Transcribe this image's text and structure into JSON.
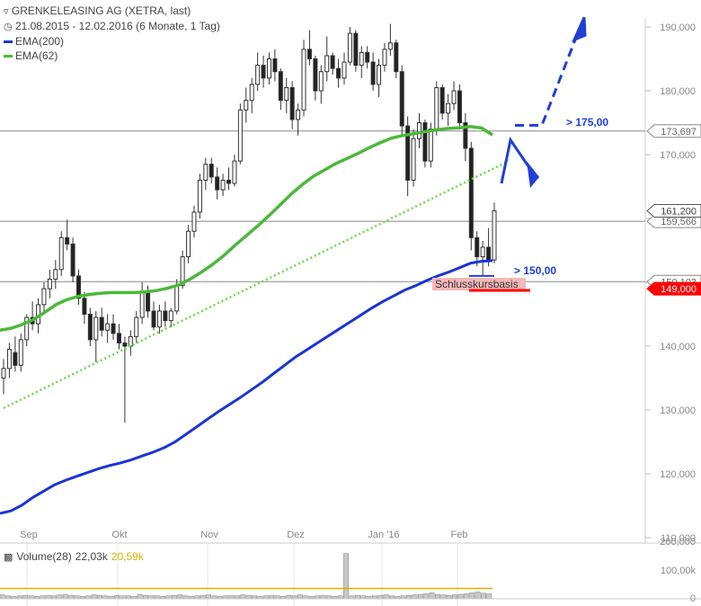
{
  "header": {
    "title": "GRENKELEASING AG (XETRA, last)",
    "period": "21.08.2015 - 12.02.2016 (6 Monate, 1 Tag)",
    "legend": [
      {
        "name": "EMA(200)",
        "color": "#1a34d6"
      },
      {
        "name": "EMA(62)",
        "color": "#4cb83a"
      }
    ]
  },
  "volume_panel": {
    "label": "Volume(28)",
    "value1": "22,03k",
    "value2": "20,59k",
    "value2_color": "#e0b000",
    "y_ticks": [
      "200,000",
      "100,00k",
      "0"
    ]
  },
  "annotations": {
    "support_label": "> 150,00",
    "target_label": "> 175,00",
    "basis_label": "Schlusskursbasis"
  },
  "chart_data": {
    "type": "candlestick",
    "x_months": [
      "Sep",
      "Okt",
      "Nov",
      "Dez",
      "Jan '16",
      "Feb"
    ],
    "y_ticks": [
      "190,000",
      "180,000",
      "170,000",
      "160,000",
      "150,000",
      "140,000",
      "130,000",
      "120,000",
      "110,000"
    ],
    "ylim": [
      110000,
      193000
    ],
    "horizontal_lines": [
      {
        "value": 173697,
        "label": "173,697"
      },
      {
        "value": 159566,
        "label": "159,566"
      },
      {
        "value": 150103,
        "label": "150,103"
      }
    ],
    "price_tags": [
      {
        "value": 161200,
        "label": "161,200",
        "color": "#555555"
      },
      {
        "value": 149000,
        "label": "149,000",
        "color": "#ff0000"
      }
    ],
    "ema62": [
      142.5,
      142.8,
      143.4,
      144.2,
      145.3,
      146.5,
      147.3,
      147.8,
      148.1,
      148.3,
      148.4,
      148.4,
      148.4,
      148.5,
      148.7,
      149.1,
      149.6,
      150.5,
      151.6,
      152.8,
      154.2,
      155.8,
      157.3,
      158.8,
      160.4,
      162.1,
      163.8,
      165.3,
      166.6,
      167.6,
      168.6,
      169.4,
      170.2,
      171.1,
      171.9,
      172.6,
      173.0,
      173.3,
      173.6,
      173.9,
      174.1,
      174.2,
      174.4,
      174.2,
      173.1
    ],
    "ema200": [
      113.8,
      114.2,
      115.1,
      116.3,
      117.3,
      118.3,
      119.0,
      119.6,
      120.2,
      120.8,
      121.3,
      121.7,
      122.2,
      122.8,
      123.4,
      124.1,
      125.0,
      126.2,
      127.4,
      128.6,
      129.8,
      130.9,
      132.0,
      133.2,
      134.4,
      135.7,
      137.0,
      138.3,
      139.4,
      140.5,
      141.6,
      142.7,
      143.8,
      144.9,
      146.0,
      147.0,
      147.9,
      148.8,
      149.5,
      150.3,
      151.0,
      151.6,
      152.3,
      153.0,
      153.3,
      153.4
    ],
    "trendline": [
      {
        "x": "21.08.2015",
        "y": 130300
      },
      {
        "x": "12.02.2016",
        "y": 169000
      }
    ],
    "candles": [
      {
        "o": 135.0,
        "h": 138.0,
        "l": 132.5,
        "c": 136.5
      },
      {
        "o": 136.5,
        "h": 140.5,
        "l": 135.0,
        "c": 139.5
      },
      {
        "o": 139.0,
        "h": 141.5,
        "l": 136.0,
        "c": 137.0
      },
      {
        "o": 137.0,
        "h": 142.0,
        "l": 136.0,
        "c": 141.0
      },
      {
        "o": 141.0,
        "h": 145.0,
        "l": 140.0,
        "c": 144.5
      },
      {
        "o": 144.5,
        "h": 147.0,
        "l": 142.5,
        "c": 143.5
      },
      {
        "o": 143.5,
        "h": 147.5,
        "l": 142.0,
        "c": 146.5
      },
      {
        "o": 146.5,
        "h": 150.0,
        "l": 145.5,
        "c": 149.0
      },
      {
        "o": 149.0,
        "h": 152.0,
        "l": 147.5,
        "c": 150.5
      },
      {
        "o": 150.5,
        "h": 153.5,
        "l": 149.0,
        "c": 152.0
      },
      {
        "o": 152.0,
        "h": 158.0,
        "l": 151.0,
        "c": 157.0
      },
      {
        "o": 157.0,
        "h": 159.8,
        "l": 155.0,
        "c": 156.0
      },
      {
        "o": 156.0,
        "h": 157.0,
        "l": 150.0,
        "c": 151.0
      },
      {
        "o": 151.0,
        "h": 152.0,
        "l": 146.5,
        "c": 147.5
      },
      {
        "o": 147.5,
        "h": 148.5,
        "l": 143.5,
        "c": 145.0
      },
      {
        "o": 145.0,
        "h": 146.0,
        "l": 140.0,
        "c": 141.0
      },
      {
        "o": 141.0,
        "h": 145.5,
        "l": 137.5,
        "c": 144.5
      },
      {
        "o": 144.5,
        "h": 146.0,
        "l": 141.5,
        "c": 142.5
      },
      {
        "o": 142.5,
        "h": 145.0,
        "l": 140.5,
        "c": 143.5
      },
      {
        "o": 143.5,
        "h": 145.0,
        "l": 141.0,
        "c": 142.0
      },
      {
        "o": 142.0,
        "h": 143.5,
        "l": 139.5,
        "c": 140.5
      },
      {
        "o": 140.5,
        "h": 141.5,
        "l": 128.0,
        "c": 140.0
      },
      {
        "o": 140.0,
        "h": 142.5,
        "l": 138.5,
        "c": 141.5
      },
      {
        "o": 141.5,
        "h": 145.5,
        "l": 140.5,
        "c": 144.5
      },
      {
        "o": 144.5,
        "h": 150.0,
        "l": 143.5,
        "c": 148.5
      },
      {
        "o": 148.5,
        "h": 149.5,
        "l": 144.5,
        "c": 145.5
      },
      {
        "o": 145.5,
        "h": 147.0,
        "l": 142.5,
        "c": 143.0
      },
      {
        "o": 143.0,
        "h": 146.5,
        "l": 142.0,
        "c": 145.5
      },
      {
        "o": 145.5,
        "h": 147.0,
        "l": 143.0,
        "c": 144.0
      },
      {
        "o": 144.0,
        "h": 146.0,
        "l": 143.0,
        "c": 145.5
      },
      {
        "o": 145.5,
        "h": 150.5,
        "l": 145.0,
        "c": 149.5
      },
      {
        "o": 149.5,
        "h": 155.0,
        "l": 149.0,
        "c": 154.0
      },
      {
        "o": 154.0,
        "h": 159.0,
        "l": 153.0,
        "c": 158.0
      },
      {
        "o": 158.0,
        "h": 162.0,
        "l": 157.0,
        "c": 161.0
      },
      {
        "o": 161.0,
        "h": 167.0,
        "l": 160.0,
        "c": 166.0
      },
      {
        "o": 166.0,
        "h": 169.5,
        "l": 164.5,
        "c": 168.5
      },
      {
        "o": 168.5,
        "h": 169.5,
        "l": 165.5,
        "c": 166.5
      },
      {
        "o": 166.5,
        "h": 168.0,
        "l": 163.0,
        "c": 164.5
      },
      {
        "o": 164.5,
        "h": 167.0,
        "l": 163.5,
        "c": 166.0
      },
      {
        "o": 166.0,
        "h": 168.0,
        "l": 164.5,
        "c": 165.5
      },
      {
        "o": 165.5,
        "h": 170.0,
        "l": 165.0,
        "c": 169.0
      },
      {
        "o": 169.0,
        "h": 178.0,
        "l": 168.5,
        "c": 177.0
      },
      {
        "o": 177.0,
        "h": 180.5,
        "l": 175.0,
        "c": 178.5
      },
      {
        "o": 178.5,
        "h": 182.0,
        "l": 176.5,
        "c": 181.0
      },
      {
        "o": 181.0,
        "h": 186.0,
        "l": 180.0,
        "c": 184.0
      },
      {
        "o": 184.0,
        "h": 185.5,
        "l": 180.5,
        "c": 182.0
      },
      {
        "o": 182.0,
        "h": 186.0,
        "l": 181.0,
        "c": 185.0
      },
      {
        "o": 185.0,
        "h": 186.5,
        "l": 181.5,
        "c": 183.0
      },
      {
        "o": 183.0,
        "h": 183.5,
        "l": 177.0,
        "c": 178.5
      },
      {
        "o": 178.5,
        "h": 182.0,
        "l": 176.5,
        "c": 180.5
      },
      {
        "o": 180.5,
        "h": 181.5,
        "l": 174.0,
        "c": 175.5
      },
      {
        "o": 175.5,
        "h": 178.0,
        "l": 173.0,
        "c": 177.0
      },
      {
        "o": 177.0,
        "h": 188.0,
        "l": 176.0,
        "c": 186.5
      },
      {
        "o": 186.5,
        "h": 189.5,
        "l": 184.0,
        "c": 185.0
      },
      {
        "o": 185.0,
        "h": 185.5,
        "l": 178.5,
        "c": 180.0
      },
      {
        "o": 180.0,
        "h": 184.0,
        "l": 178.0,
        "c": 183.0
      },
      {
        "o": 183.0,
        "h": 188.5,
        "l": 181.5,
        "c": 185.5
      },
      {
        "o": 185.5,
        "h": 186.0,
        "l": 182.5,
        "c": 183.5
      },
      {
        "o": 183.5,
        "h": 185.0,
        "l": 180.5,
        "c": 182.0
      },
      {
        "o": 182.0,
        "h": 186.0,
        "l": 181.0,
        "c": 184.5
      },
      {
        "o": 184.5,
        "h": 190.0,
        "l": 184.0,
        "c": 189.0
      },
      {
        "o": 189.0,
        "h": 189.5,
        "l": 183.0,
        "c": 184.0
      },
      {
        "o": 184.0,
        "h": 187.0,
        "l": 182.0,
        "c": 186.0
      },
      {
        "o": 186.0,
        "h": 187.0,
        "l": 183.5,
        "c": 184.5
      },
      {
        "o": 184.5,
        "h": 186.0,
        "l": 180.0,
        "c": 181.0
      },
      {
        "o": 181.0,
        "h": 185.0,
        "l": 179.0,
        "c": 184.0
      },
      {
        "o": 184.0,
        "h": 187.5,
        "l": 183.0,
        "c": 186.5
      },
      {
        "o": 186.5,
        "h": 190.5,
        "l": 185.5,
        "c": 187.5
      },
      {
        "o": 187.5,
        "h": 188.0,
        "l": 182.0,
        "c": 183.0
      },
      {
        "o": 183.0,
        "h": 184.0,
        "l": 173.0,
        "c": 174.5
      },
      {
        "o": 174.5,
        "h": 176.0,
        "l": 163.5,
        "c": 166.0
      },
      {
        "o": 166.0,
        "h": 174.0,
        "l": 165.0,
        "c": 172.5
      },
      {
        "o": 172.5,
        "h": 176.5,
        "l": 171.0,
        "c": 175.0
      },
      {
        "o": 175.0,
        "h": 175.5,
        "l": 168.0,
        "c": 169.0
      },
      {
        "o": 169.0,
        "h": 175.0,
        "l": 168.0,
        "c": 174.0
      },
      {
        "o": 174.0,
        "h": 181.5,
        "l": 173.0,
        "c": 180.5
      },
      {
        "o": 180.5,
        "h": 181.0,
        "l": 175.5,
        "c": 176.5
      },
      {
        "o": 176.5,
        "h": 179.5,
        "l": 174.5,
        "c": 178.0
      },
      {
        "o": 178.0,
        "h": 181.5,
        "l": 177.0,
        "c": 180.0
      },
      {
        "o": 180.0,
        "h": 181.0,
        "l": 174.0,
        "c": 175.0
      },
      {
        "o": 175.0,
        "h": 176.5,
        "l": 169.0,
        "c": 171.0
      },
      {
        "o": 171.0,
        "h": 172.0,
        "l": 155.0,
        "c": 157.0
      },
      {
        "o": 157.0,
        "h": 158.0,
        "l": 152.5,
        "c": 154.0
      },
      {
        "o": 154.0,
        "h": 156.5,
        "l": 151.0,
        "c": 155.5
      },
      {
        "o": 155.5,
        "h": 158.5,
        "l": 152.5,
        "c": 153.5
      },
      {
        "o": 153.5,
        "h": 162.5,
        "l": 153.0,
        "c": 161.2
      }
    ],
    "volume_series": [
      8,
      6,
      5,
      6,
      7,
      6,
      5,
      6,
      7,
      6,
      8,
      9,
      7,
      6,
      5,
      6,
      8,
      7,
      6,
      5,
      7,
      6,
      6,
      5,
      9,
      7,
      6,
      6,
      5,
      6,
      7,
      8,
      6,
      5,
      6,
      7,
      8,
      6,
      5,
      6,
      7,
      6,
      8,
      7,
      6,
      5,
      6,
      7,
      6,
      5,
      7,
      6,
      8,
      6,
      5,
      6,
      7,
      6,
      5,
      6,
      90,
      6,
      7,
      6,
      5,
      6,
      7,
      8,
      6,
      5,
      6,
      7,
      8,
      9,
      10,
      12,
      9,
      8,
      7,
      8,
      9,
      10,
      12,
      14,
      11,
      10
    ],
    "volume_avg": [
      20.6
    ]
  }
}
